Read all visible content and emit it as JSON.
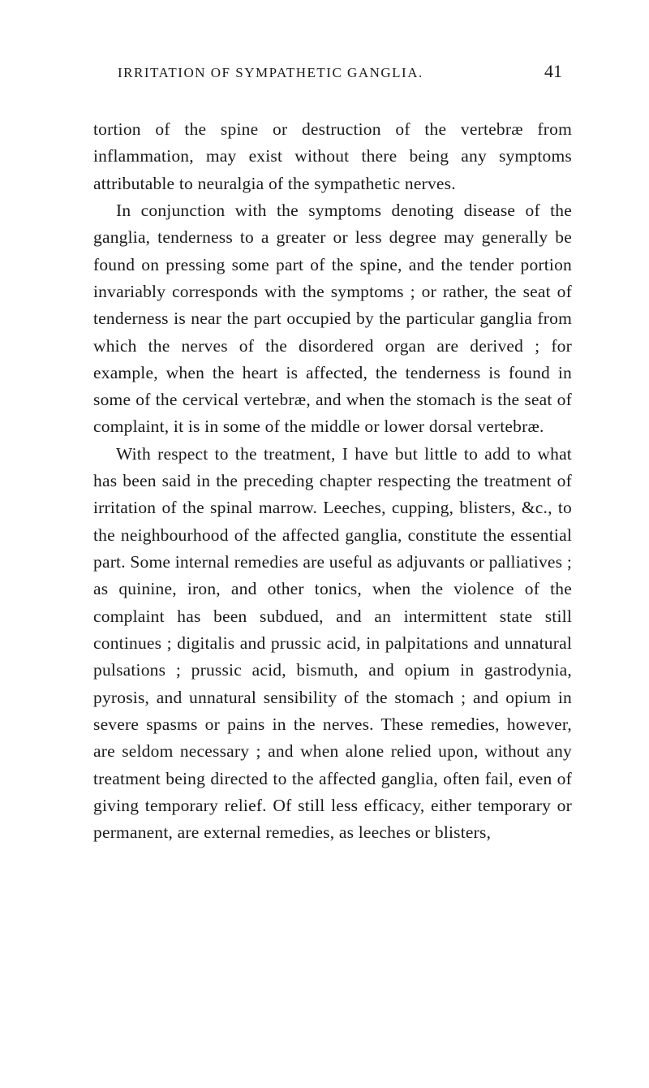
{
  "header": {
    "title": "IRRITATION OF SYMPATHETIC GANGLIA.",
    "pageNumber": "41"
  },
  "paragraphs": {
    "p1": "tortion of the spine or destruction of the vertebræ from inflammation, may exist without there being any symptoms attributable to neuralgia of the sympathetic nerves.",
    "p2": "In conjunction with the symptoms denoting disease of the ganglia, tenderness to a greater or less degree may generally be found on pressing some part of the spine, and the tender portion invariably corresponds with the symptoms ; or rather, the seat of tenderness is near the part occupied by the particular ganglia from which the nerves of the disordered organ are derived ; for example, when the heart is affected, the tenderness is found in some of the cervical vertebræ, and when the stomach is the seat of complaint, it is in some of the middle or lower dorsal vertebræ.",
    "p3": "With respect to the treatment, I have but little to add to what has been said in the preceding chapter respecting the treatment of irritation of the spinal marrow. Leeches, cupping, blisters, &c., to the neighbourhood of the affected ganglia, constitute the essential part. Some internal remedies are useful as adjuvants or palliatives ; as quinine, iron, and other tonics, when the violence of the complaint has been subdued, and an intermittent state still continues ; digitalis and prussic acid, in palpitations and unnatural pulsations ; prussic acid, bismuth, and opium in gastrodynia, pyrosis, and unnatural sensibility of the stomach ; and opium in severe spasms or pains in the nerves. These remedies, however, are seldom necessary ; and when alone relied upon, without any treatment being directed to the affected ganglia, often fail, even of giving temporary relief. Of still less efficacy, either temporary or permanent, are external remedies, as leeches or blisters,"
  },
  "style": {
    "backgroundColor": "#ffffff",
    "textColor": "#1a1a1a",
    "fontFamily": "Georgia, Times New Roman, serif",
    "bodyFontSize": 21.5,
    "headerFontSize": 17,
    "pageNumberFontSize": 22,
    "lineHeight": 1.55,
    "pageWidth": 800,
    "pageHeight": 1340
  }
}
